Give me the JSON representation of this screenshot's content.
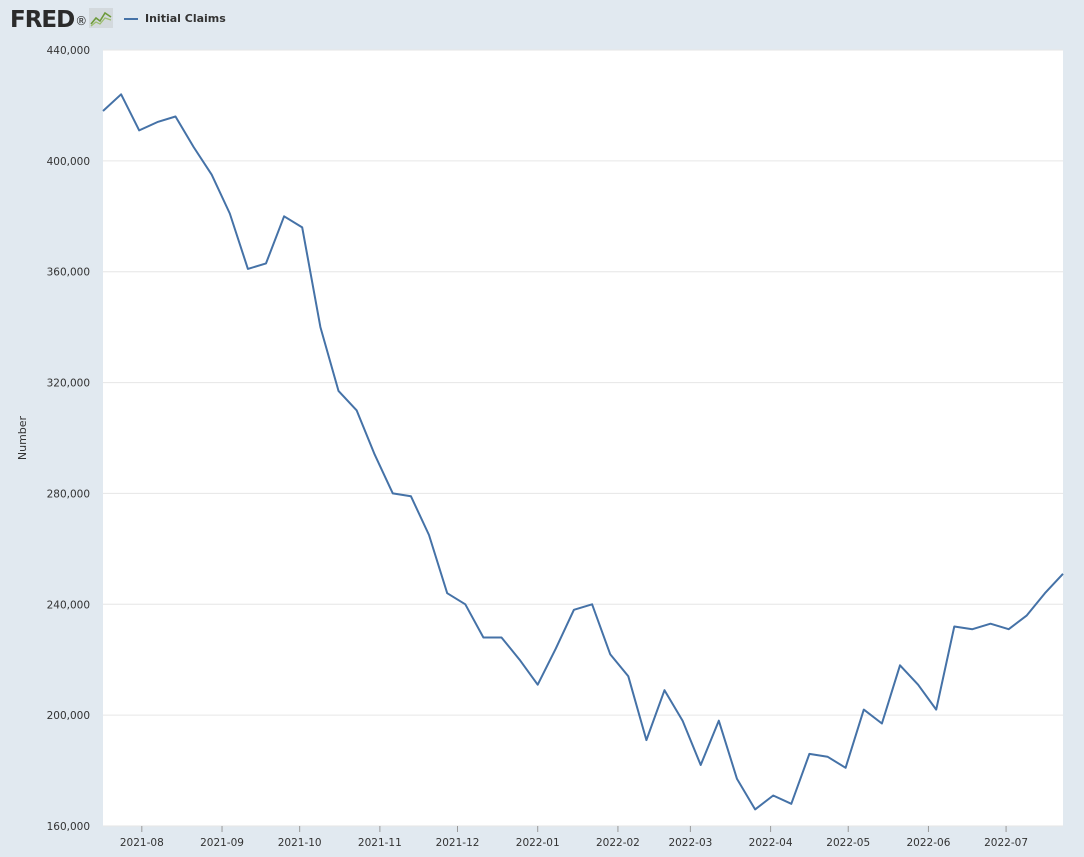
{
  "header": {
    "logo_text": "FRED",
    "logo_mark": "®",
    "logo_icon": "line-graph-icon"
  },
  "legend": {
    "label": "Initial Claims",
    "color": "#4572a7"
  },
  "colors": {
    "background": "#e1e9f0",
    "plot_background": "#ffffff",
    "gridline": "#e6e6e6",
    "series": "#4572a7"
  },
  "chart_data": {
    "type": "line",
    "title": "",
    "xlabel": "",
    "ylabel": "Number",
    "ylim": [
      160000,
      440000
    ],
    "yticks": [
      160000,
      200000,
      240000,
      280000,
      320000,
      360000,
      400000,
      440000
    ],
    "ytick_labels": [
      "160,000",
      "200,000",
      "240,000",
      "280,000",
      "320,000",
      "360,000",
      "400,000",
      "440,000"
    ],
    "xlim": [
      "2021-07-17",
      "2022-07-23"
    ],
    "xticks": [
      "2021-08-01",
      "2021-09-01",
      "2021-10-01",
      "2021-11-01",
      "2021-12-01",
      "2022-01-01",
      "2022-02-01",
      "2022-03-01",
      "2022-04-01",
      "2022-05-01",
      "2022-06-01",
      "2022-07-01"
    ],
    "xtick_labels": [
      "2021-08",
      "2021-09",
      "2021-10",
      "2021-11",
      "2021-12",
      "2022-01",
      "2022-02",
      "2022-03",
      "2022-04",
      "2022-05",
      "2022-06",
      "2022-07"
    ],
    "grid": true,
    "legend_position": "top-left",
    "series": [
      {
        "name": "Initial Claims",
        "x": [
          "2021-07-17",
          "2021-07-24",
          "2021-07-31",
          "2021-08-07",
          "2021-08-14",
          "2021-08-21",
          "2021-08-28",
          "2021-09-04",
          "2021-09-11",
          "2021-09-18",
          "2021-09-25",
          "2021-10-02",
          "2021-10-09",
          "2021-10-16",
          "2021-10-23",
          "2021-10-30",
          "2021-11-06",
          "2021-11-13",
          "2021-11-20",
          "2021-11-27",
          "2021-12-04",
          "2021-12-11",
          "2021-12-18",
          "2021-12-25",
          "2022-01-01",
          "2022-01-08",
          "2022-01-15",
          "2022-01-22",
          "2022-01-29",
          "2022-02-05",
          "2022-02-12",
          "2022-02-19",
          "2022-02-26",
          "2022-03-05",
          "2022-03-12",
          "2022-03-19",
          "2022-03-26",
          "2022-04-02",
          "2022-04-09",
          "2022-04-16",
          "2022-04-23",
          "2022-04-30",
          "2022-05-07",
          "2022-05-14",
          "2022-05-21",
          "2022-05-28",
          "2022-06-04",
          "2022-06-11",
          "2022-06-18",
          "2022-06-25",
          "2022-07-02",
          "2022-07-09",
          "2022-07-16",
          "2022-07-23"
        ],
        "y": [
          418000,
          424000,
          411000,
          414000,
          416000,
          405000,
          395000,
          381000,
          361000,
          363000,
          380000,
          376000,
          340000,
          317000,
          310000,
          294000,
          280000,
          279000,
          265000,
          244000,
          240000,
          228000,
          228000,
          220000,
          211000,
          224000,
          238000,
          240000,
          222000,
          214000,
          191000,
          209000,
          198000,
          182000,
          198000,
          177000,
          166000,
          171000,
          168000,
          186000,
          185000,
          181000,
          202000,
          197000,
          218000,
          211000,
          202000,
          232000,
          231000,
          233000,
          231000,
          236000,
          244000,
          251000
        ]
      }
    ]
  }
}
